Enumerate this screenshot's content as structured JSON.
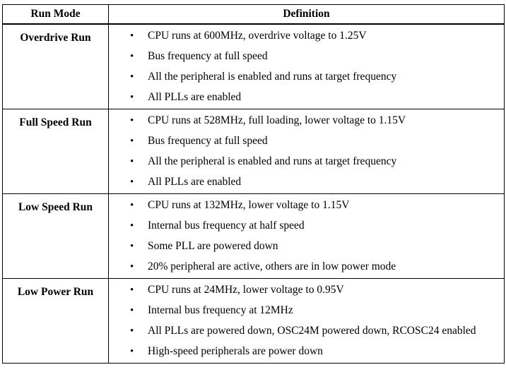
{
  "header": {
    "col1": "Run Mode",
    "col2": "Definition"
  },
  "rows": [
    {
      "mode": "Overdrive Run",
      "items": [
        "CPU runs at 600MHz, overdrive voltage to 1.25V",
        "Bus frequency at full speed",
        "All the peripheral is enabled and runs at target frequency",
        "All PLLs are enabled"
      ]
    },
    {
      "mode": "Full Speed Run",
      "items": [
        "CPU runs at 528MHz, full loading, lower voltage to 1.15V",
        "Bus frequency at full speed",
        "All the peripheral is enabled and runs at target frequency",
        "All PLLs are enabled"
      ]
    },
    {
      "mode": "Low Speed Run",
      "items": [
        "CPU runs at 132MHz, lower voltage to 1.15V",
        "Internal bus frequency at half speed",
        "Some PLL are powered down",
        "20% peripheral are active, others are in low power mode"
      ]
    },
    {
      "mode": "Low Power Run",
      "items": [
        "CPU runs at 24MHz, lower voltage to 0.95V",
        "Internal bus frequency at 12MHz",
        "All PLLs are powered down, OSC24M powered down, RCOSC24 enabled",
        "High-speed peripherals are power down"
      ]
    }
  ],
  "bullet_char": "•"
}
